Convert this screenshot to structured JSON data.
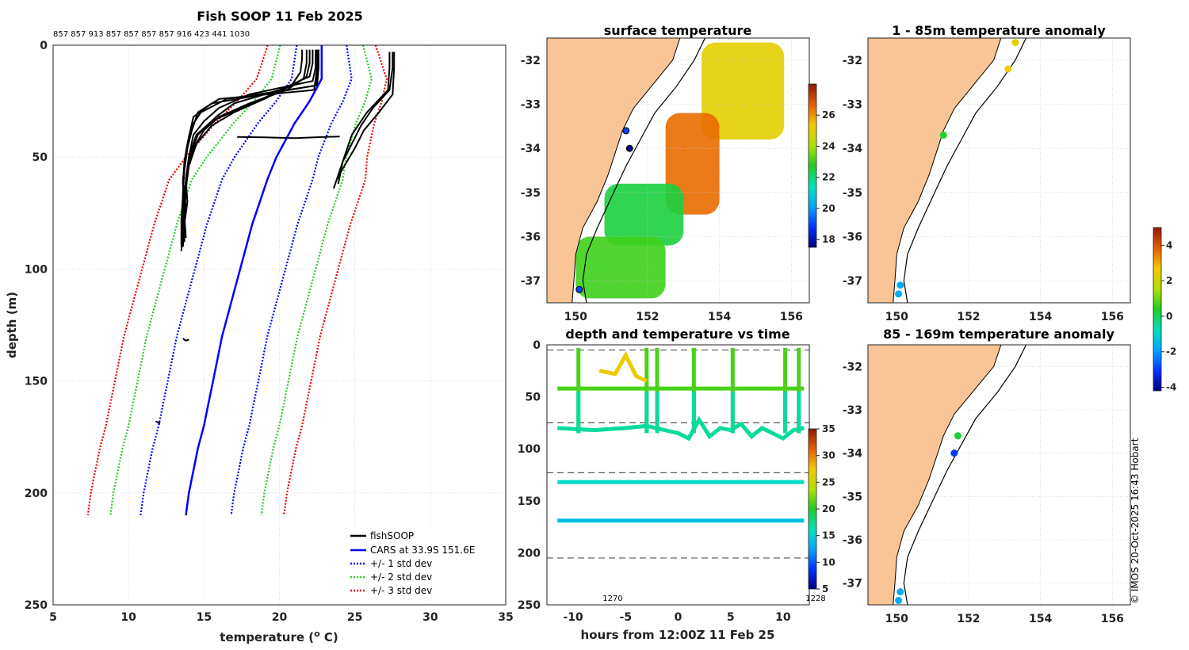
{
  "colors": {
    "land": "#f9c596",
    "profile": "#000000",
    "cars": "#0000ff",
    "std1": "#0000ff",
    "std2": "#22cc22",
    "std3": "#ee0000",
    "grid": "#cccccc",
    "dash": "#555555"
  },
  "chart_data": [
    {
      "id": "profile",
      "type": "line",
      "title": "Fish SOOP 11 Feb 2025",
      "id_row": "857 857 913 857 857 857 857 916 423 441 1030",
      "xlabel": "temperature (o C)",
      "ylabel": "depth (m)",
      "xlim": [
        5,
        35
      ],
      "ylim": [
        250,
        0
      ],
      "xticks": [
        "5",
        "10",
        "15",
        "20",
        "25",
        "30",
        "35"
      ],
      "yticks": [
        "0",
        "50",
        "100",
        "150",
        "200",
        "250"
      ],
      "legend": [
        "fishSOOP",
        "CARS at 33.9S 151.6E",
        "+/- 1 std dev",
        "+/- 2 std dev",
        "+/- 3 std dev"
      ],
      "legend_position": "bottom-right",
      "cars": {
        "depth": [
          0,
          5,
          10,
          15,
          20,
          25,
          30,
          35,
          40,
          45,
          50,
          60,
          70,
          80,
          90,
          100,
          110,
          120,
          130,
          140,
          150,
          160,
          170,
          180,
          190,
          200,
          210
        ],
        "temp": [
          22.8,
          22.8,
          22.8,
          22.8,
          22.4,
          22.0,
          21.5,
          21.0,
          20.6,
          20.2,
          19.8,
          19.2,
          18.7,
          18.2,
          17.8,
          17.4,
          17.0,
          16.6,
          16.2,
          15.9,
          15.6,
          15.3,
          15.0,
          14.6,
          14.3,
          14.0,
          13.8
        ]
      },
      "std_offsets": [
        3.0,
        5.0,
        6.5
      ],
      "fishsoop_casts": [
        {
          "depth": [
            2,
            10,
            18,
            24,
            30,
            36,
            42,
            50,
            60,
            70,
            80,
            90
          ],
          "temp": [
            22.6,
            22.6,
            22.5,
            16.5,
            14.8,
            14.2,
            14.0,
            13.8,
            13.6,
            13.7,
            13.6,
            13.6
          ]
        },
        {
          "depth": [
            2,
            10,
            16,
            22,
            28,
            34,
            40,
            50,
            60,
            70,
            80,
            88
          ],
          "temp": [
            22.4,
            22.4,
            22.2,
            18.0,
            16.0,
            15.0,
            14.3,
            14.0,
            13.8,
            13.9,
            13.7,
            13.7
          ]
        },
        {
          "depth": [
            2,
            8,
            14,
            20,
            26,
            32,
            38,
            46,
            56,
            66,
            76,
            86
          ],
          "temp": [
            22.0,
            22.0,
            21.8,
            20.5,
            18.0,
            16.0,
            15.0,
            14.3,
            13.9,
            13.8,
            13.7,
            13.8
          ]
        },
        {
          "depth": [
            2,
            8,
            15,
            22,
            28,
            34,
            40,
            48,
            58,
            68,
            78,
            90
          ],
          "temp": [
            21.8,
            21.8,
            21.6,
            19.5,
            17.5,
            15.5,
            14.5,
            14.1,
            13.9,
            13.6,
            13.5,
            13.5
          ]
        },
        {
          "depth": [
            2,
            10,
            18,
            26,
            32,
            38,
            44,
            52,
            62,
            72,
            82,
            92
          ],
          "temp": [
            22.6,
            22.6,
            22.4,
            15.5,
            14.3,
            14.1,
            13.9,
            13.7,
            13.6,
            13.8,
            13.6,
            13.5
          ]
        },
        {
          "depth": [
            2,
            6,
            12,
            18,
            24,
            30,
            36,
            44,
            54,
            64,
            74,
            84
          ],
          "temp": [
            21.5,
            21.5,
            21.4,
            20.8,
            19.0,
            17.0,
            15.5,
            14.5,
            14.0,
            13.8,
            13.6,
            13.7
          ]
        },
        {
          "depth": [
            2,
            8,
            14,
            20,
            26,
            32,
            40,
            50,
            60,
            70,
            80,
            90
          ],
          "temp": [
            22.2,
            22.2,
            22.0,
            20.0,
            17.0,
            15.8,
            14.6,
            14.0,
            13.8,
            13.7,
            13.7,
            13.6
          ]
        },
        {
          "depth": [
            2,
            10,
            20,
            24,
            30,
            38,
            46,
            56,
            66,
            76,
            86
          ],
          "temp": [
            22.5,
            22.5,
            22.3,
            16.0,
            14.6,
            14.2,
            13.9,
            13.7,
            13.6,
            13.6,
            13.5
          ]
        },
        {
          "depth": [
            3,
            10,
            20,
            30,
            40,
            50,
            60,
            64
          ],
          "temp": [
            27.3,
            27.3,
            27.2,
            25.8,
            24.8,
            24.3,
            23.8,
            23.6
          ]
        },
        {
          "depth": [
            3,
            10,
            20,
            28,
            36,
            44,
            52,
            62
          ],
          "temp": [
            27.5,
            27.5,
            27.3,
            26.2,
            25.4,
            24.8,
            24.2,
            23.9
          ]
        },
        {
          "depth": [
            3,
            10,
            22,
            30,
            38,
            46,
            54,
            60
          ],
          "temp": [
            27.6,
            27.6,
            27.5,
            26.6,
            25.6,
            25.0,
            24.3,
            23.8
          ]
        },
        {
          "depth": [
            41,
            41.2,
            41.5,
            41,
            40.8
          ],
          "temp": [
            17.2,
            19.0,
            21.0,
            23.0,
            24.0
          ]
        },
        {
          "depth": [
            131,
            132,
            131.5
          ],
          "temp": [
            13.6,
            13.8,
            14.0
          ]
        },
        {
          "depth": [
            168,
            169
          ],
          "temp": [
            11.8,
            12.1
          ]
        }
      ]
    },
    {
      "id": "sst",
      "type": "heatmap",
      "title": "surface temperature",
      "lon_range": [
        149.2,
        156.5
      ],
      "lat_range": [
        -37.5,
        -31.5
      ],
      "xticks": [
        "150",
        "152",
        "154",
        "156"
      ],
      "yticks": [
        "-32",
        "-33",
        "-34",
        "-35",
        "-36",
        "-37"
      ],
      "colorbar": {
        "min": 17.5,
        "max": 28,
        "ticks": [
          "18",
          "20",
          "22",
          "24",
          "26"
        ]
      },
      "regions": [
        {
          "lon": [
            153.5,
            155.8
          ],
          "lat": [
            -33.8,
            -31.6
          ],
          "temp": 25
        },
        {
          "lon": [
            152.5,
            154.0
          ],
          "lat": [
            -35.5,
            -33.2
          ],
          "temp": 26.5
        },
        {
          "lon": [
            150.8,
            153.0
          ],
          "lat": [
            -36.2,
            -34.8
          ],
          "temp": 22.5
        },
        {
          "lon": [
            150.0,
            152.5
          ],
          "lat": [
            -37.4,
            -36.0
          ],
          "temp": 23.0
        }
      ],
      "stations": [
        {
          "lon": 151.4,
          "lat": -33.6,
          "temp": 19
        },
        {
          "lon": 151.5,
          "lat": -34.0,
          "temp": 17.5
        },
        {
          "lon": 150.1,
          "lat": -37.2,
          "temp": 19
        }
      ]
    },
    {
      "id": "time",
      "type": "scatter",
      "title": "depth and temperature vs time",
      "xlabel": "hours from 12:00Z 11 Feb 25",
      "xlim": [
        -12.5,
        12.5
      ],
      "ylim": [
        250,
        0
      ],
      "xticks": [
        "-10",
        "-5",
        "0",
        "5",
        "10"
      ],
      "yticks": [
        "0",
        "50",
        "100",
        "150",
        "200",
        "250"
      ],
      "annotations": [
        "1270",
        "1228"
      ],
      "dashed_depths": [
        5,
        75,
        123,
        205
      ],
      "colorbar": {
        "min": 5,
        "max": 35,
        "ticks": [
          "5",
          "10",
          "15",
          "20",
          "25",
          "30",
          "35"
        ]
      },
      "tracks": [
        {
          "depth": 42,
          "temp": 21,
          "x_range": [
            -11.5,
            12
          ]
        },
        {
          "depth": 132,
          "temp": 16,
          "x_range": [
            -11.5,
            12
          ]
        },
        {
          "depth": 169,
          "temp": 14,
          "x_range": [
            -11.5,
            12
          ]
        }
      ],
      "bottom_track": {
        "x": [
          -11.5,
          -8,
          -5,
          -3,
          0,
          1,
          2,
          3,
          4,
          5,
          6,
          7,
          8,
          10,
          11,
          12
        ],
        "depth": [
          80,
          82,
          80,
          78,
          85,
          90,
          72,
          88,
          80,
          82,
          76,
          88,
          80,
          90,
          82,
          80
        ],
        "temp": [
          17,
          17,
          17,
          17,
          17,
          17,
          17,
          17,
          17,
          17,
          17,
          17,
          17,
          17,
          17,
          17
        ]
      },
      "warm_segment": {
        "x": [
          -7.5,
          -6,
          -5,
          -4,
          -3
        ],
        "depth": [
          25,
          28,
          10,
          30,
          35
        ],
        "temp": [
          27,
          27,
          27,
          27,
          27
        ]
      },
      "casts": [
        -9.5,
        -3.0,
        -2.0,
        1.5,
        5.2,
        10.2,
        11.5
      ]
    },
    {
      "id": "anom1",
      "type": "scatter",
      "title": "1 - 85m temperature anomaly",
      "lon_range": [
        149.2,
        156.5
      ],
      "lat_range": [
        -37.5,
        -31.5
      ],
      "xticks": [
        "150",
        "152",
        "154",
        "156"
      ],
      "yticks": [
        "-32",
        "-33",
        "-34",
        "-35",
        "-36",
        "-37"
      ],
      "colorbar": {
        "min": -4.2,
        "max": 5,
        "ticks": [
          "4",
          "2",
          "0",
          "-2",
          "-4"
        ]
      },
      "points": [
        {
          "lon": 153.3,
          "lat": -31.6,
          "anom": 2.5
        },
        {
          "lon": 153.1,
          "lat": -32.2,
          "anom": 2.6
        },
        {
          "lon": 151.3,
          "lat": -33.7,
          "anom": 0.3
        },
        {
          "lon": 150.1,
          "lat": -37.1,
          "anom": -1.8
        },
        {
          "lon": 150.05,
          "lat": -37.3,
          "anom": -1.8
        }
      ]
    },
    {
      "id": "anom2",
      "type": "scatter",
      "title": "85 - 169m temperature anomaly",
      "lon_range": [
        149.2,
        156.5
      ],
      "lat_range": [
        -37.5,
        -31.5
      ],
      "xticks": [
        "150",
        "152",
        "154",
        "156"
      ],
      "yticks": [
        "-32",
        "-33",
        "-34",
        "-35",
        "-36",
        "-37"
      ],
      "points": [
        {
          "lon": 151.7,
          "lat": -33.6,
          "anom": 0.2
        },
        {
          "lon": 151.6,
          "lat": -34.0,
          "anom": -3.0
        },
        {
          "lon": 150.1,
          "lat": -37.2,
          "anom": -1.8
        },
        {
          "lon": 150.05,
          "lat": -37.4,
          "anom": -1.8
        }
      ]
    }
  ],
  "footer": {
    "credit": "© IMOS 20-Oct-2025 16:43 Hobart"
  }
}
